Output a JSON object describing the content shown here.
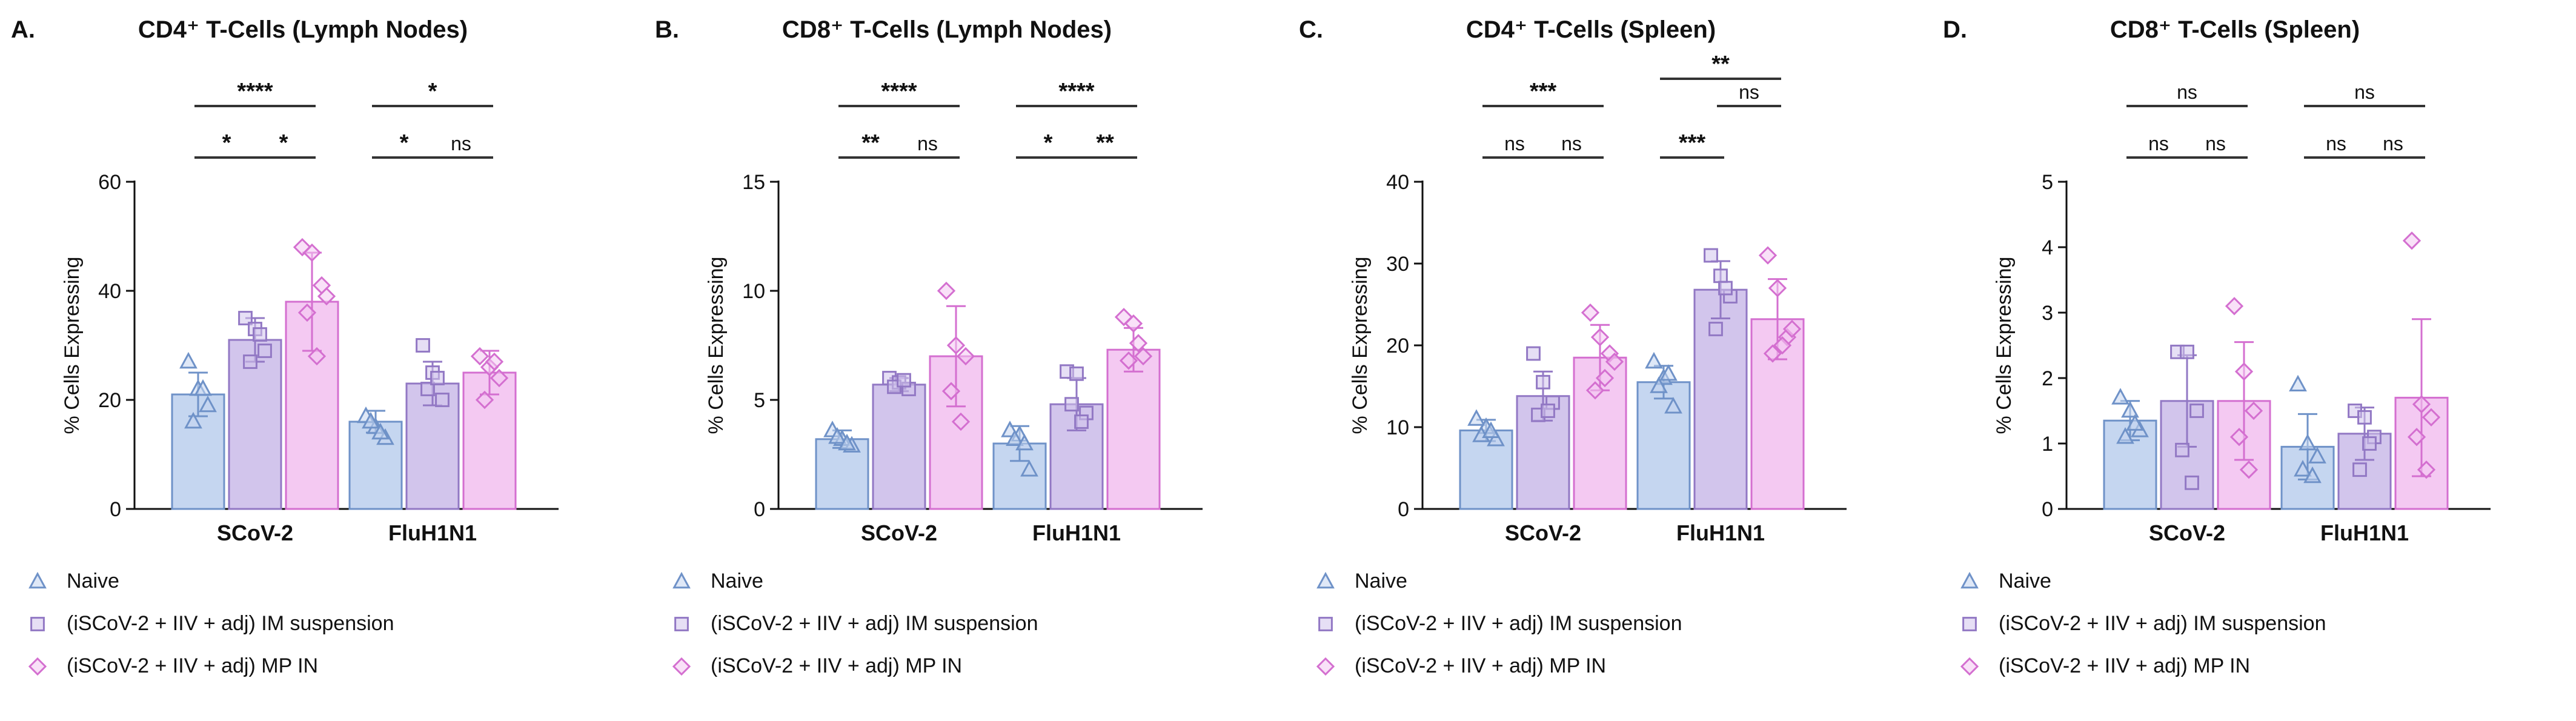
{
  "legend": [
    {
      "label": "Naive",
      "marker": "triangle",
      "color": "#8da9d6"
    },
    {
      "label": "(iSCoV-2 + IIV + adj) IM suspension",
      "marker": "square",
      "color": "#a78fd0"
    },
    {
      "label": "(iSCoV-2 + IIV + adj) MP IN",
      "marker": "diamond",
      "color": "#e596e2"
    }
  ],
  "colors": {
    "naive_fill": "#c5d6f0",
    "naive_edge": "#6f92c8",
    "im_fill": "#d2c5ec",
    "im_edge": "#9278c4",
    "mp_fill": "#f4c9f2",
    "mp_edge": "#d46fd0",
    "sig_line": "#333333"
  },
  "chart_data": [
    {
      "panel": "A.",
      "title": "CD4⁺ T-Cells (Lymph Nodes)",
      "type": "bar",
      "ylabel": "% Cells Expressing",
      "ylim": [
        0,
        60
      ],
      "yticks": [
        0,
        20,
        40,
        60
      ],
      "categories": [
        "SCoV-2",
        "FluH1N1"
      ],
      "series": [
        {
          "name": "Naive",
          "values": [
            21,
            16
          ],
          "error": [
            4,
            2
          ],
          "points": [
            [
              27,
              22,
              19,
              16,
              22
            ],
            [
              17,
              15,
              13,
              16,
              14
            ]
          ]
        },
        {
          "name": "(iSCoV-2 + IIV + adj) IM suspension",
          "values": [
            31,
            23
          ],
          "error": [
            4,
            4
          ],
          "points": [
            [
              35,
              33,
              29,
              27,
              32
            ],
            [
              30,
              25,
              20,
              22,
              24
            ]
          ]
        },
        {
          "name": "(iSCoV-2 + IIV + adj) MP IN",
          "values": [
            38,
            25
          ],
          "error": [
            9,
            4
          ],
          "points": [
            [
              48,
              47,
              41,
              36,
              28,
              39
            ],
            [
              28,
              26,
              24,
              20,
              27
            ]
          ]
        }
      ],
      "significance": [
        {
          "group": 0,
          "from": 0,
          "to": 2,
          "label": "****",
          "level": 2
        },
        {
          "group": 0,
          "from": 0,
          "to": 1,
          "label": "*",
          "level": 1
        },
        {
          "group": 0,
          "from": 1,
          "to": 2,
          "label": "*",
          "level": 1
        },
        {
          "group": 1,
          "from": 0,
          "to": 2,
          "label": "*",
          "level": 2
        },
        {
          "group": 1,
          "from": 0,
          "to": 1,
          "label": "*",
          "level": 1
        },
        {
          "group": 1,
          "from": 1,
          "to": 2,
          "label": "ns",
          "level": 1
        }
      ]
    },
    {
      "panel": "B.",
      "title": "CD8⁺ T-Cells (Lymph Nodes)",
      "type": "bar",
      "ylabel": "% Cells Expressing",
      "ylim": [
        0,
        15
      ],
      "yticks": [
        0,
        5,
        10,
        15
      ],
      "categories": [
        "SCoV-2",
        "FluH1N1"
      ],
      "series": [
        {
          "name": "Naive",
          "values": [
            3.2,
            3.0
          ],
          "error": [
            0.4,
            0.8
          ],
          "points": [
            [
              3.6,
              3.2,
              2.9,
              3.3,
              3.0
            ],
            [
              3.6,
              3.4,
              1.8,
              3.2,
              3.0
            ]
          ]
        },
        {
          "name": "(iSCoV-2 + IIV + adj) IM suspension",
          "values": [
            5.7,
            4.8
          ],
          "error": [
            0.3,
            1.2
          ],
          "points": [
            [
              6.0,
              5.8,
              5.5,
              5.6,
              5.9
            ],
            [
              6.3,
              6.2,
              4.4,
              4.8,
              4.0
            ]
          ]
        },
        {
          "name": "(iSCoV-2 + IIV + adj) MP IN",
          "values": [
            7.0,
            7.3
          ],
          "error": [
            2.3,
            1.0
          ],
          "points": [
            [
              10.0,
              7.5,
              7.0,
              5.4,
              4.0
            ],
            [
              8.8,
              8.5,
              7.0,
              6.8,
              7.6
            ]
          ]
        }
      ],
      "significance": [
        {
          "group": 0,
          "from": 0,
          "to": 2,
          "label": "****",
          "level": 2
        },
        {
          "group": 0,
          "from": 0,
          "to": 1,
          "label": "**",
          "level": 1
        },
        {
          "group": 0,
          "from": 1,
          "to": 2,
          "label": "ns",
          "level": 1
        },
        {
          "group": 1,
          "from": 0,
          "to": 2,
          "label": "****",
          "level": 2
        },
        {
          "group": 1,
          "from": 0,
          "to": 1,
          "label": "*",
          "level": 1
        },
        {
          "group": 1,
          "from": 1,
          "to": 2,
          "label": "**",
          "level": 1
        }
      ]
    },
    {
      "panel": "C.",
      "title": "CD4⁺ T-Cells (Spleen)",
      "type": "bar",
      "ylabel": "% Cells Expressing",
      "ylim": [
        0,
        40
      ],
      "yticks": [
        0,
        10,
        20,
        30,
        40
      ],
      "categories": [
        "SCoV-2",
        "FluH1N1"
      ],
      "series": [
        {
          "name": "Naive",
          "values": [
            9.6,
            15.5
          ],
          "error": [
            1.3,
            2.0
          ],
          "points": [
            [
              11.0,
              10.0,
              8.5,
              9.0,
              9.5
            ],
            [
              18.0,
              16.0,
              12.5,
              15.0,
              16.5
            ]
          ]
        },
        {
          "name": "(iSCoV-2 + IIV + adj) IM suspension",
          "values": [
            13.8,
            26.8
          ],
          "error": [
            3.0,
            3.5
          ],
          "points": [
            [
              19.0,
              15.5,
              13.0,
              11.5,
              12.0
            ],
            [
              31.0,
              28.5,
              26.0,
              22.0,
              27.0
            ]
          ]
        },
        {
          "name": "(iSCoV-2 + IIV + adj) MP IN",
          "values": [
            18.5,
            23.2
          ],
          "error": [
            4.0,
            4.9
          ],
          "points": [
            [
              24.0,
              21.0,
              19.0,
              14.5,
              16.0,
              18.0
            ],
            [
              31.0,
              27.0,
              21.0,
              19.0,
              20.0,
              22.0
            ]
          ]
        }
      ],
      "significance": [
        {
          "group": 0,
          "from": 0,
          "to": 2,
          "label": "***",
          "level": 2
        },
        {
          "group": 0,
          "from": 0,
          "to": 1,
          "label": "ns",
          "level": 1
        },
        {
          "group": 0,
          "from": 1,
          "to": 2,
          "label": "ns",
          "level": 1
        },
        {
          "group": 1,
          "from": 0,
          "to": 2,
          "label": "**",
          "level": 3
        },
        {
          "group": 1,
          "from": 1,
          "to": 2,
          "label": "ns",
          "level": 2
        },
        {
          "group": 1,
          "from": 0,
          "to": 1,
          "label": "***",
          "level": 1
        }
      ]
    },
    {
      "panel": "D.",
      "title": "CD8⁺ T-Cells (Spleen)",
      "type": "bar",
      "ylabel": "% Cells Expressing",
      "ylim": [
        0,
        5
      ],
      "yticks": [
        0,
        1,
        2,
        3,
        4,
        5
      ],
      "categories": [
        "SCoV-2",
        "FluH1N1"
      ],
      "series": [
        {
          "name": "Naive",
          "values": [
            1.35,
            0.95
          ],
          "error": [
            0.3,
            0.5
          ],
          "points": [
            [
              1.7,
              1.5,
              1.2,
              1.1,
              1.3
            ],
            [
              1.9,
              1.0,
              0.8,
              0.6,
              0.5
            ]
          ]
        },
        {
          "name": "(iSCoV-2 + IIV + adj) IM suspension",
          "values": [
            1.65,
            1.15
          ],
          "error": [
            0.7,
            0.4
          ],
          "points": [
            [
              2.4,
              2.4,
              1.5,
              0.9,
              0.4
            ],
            [
              1.5,
              1.4,
              1.1,
              0.6,
              1.0
            ]
          ]
        },
        {
          "name": "(iSCoV-2 + IIV + adj) MP IN",
          "values": [
            1.65,
            1.7
          ],
          "error": [
            0.9,
            1.2
          ],
          "points": [
            [
              3.1,
              2.1,
              1.5,
              1.1,
              0.6
            ],
            [
              4.1,
              1.6,
              1.4,
              1.1,
              0.6
            ]
          ]
        }
      ],
      "significance": [
        {
          "group": 0,
          "from": 0,
          "to": 2,
          "label": "ns",
          "level": 2
        },
        {
          "group": 0,
          "from": 0,
          "to": 1,
          "label": "ns",
          "level": 1
        },
        {
          "group": 0,
          "from": 1,
          "to": 2,
          "label": "ns",
          "level": 1
        },
        {
          "group": 1,
          "from": 0,
          "to": 2,
          "label": "ns",
          "level": 2
        },
        {
          "group": 1,
          "from": 0,
          "to": 1,
          "label": "ns",
          "level": 1
        },
        {
          "group": 1,
          "from": 1,
          "to": 2,
          "label": "ns",
          "level": 1
        }
      ]
    }
  ]
}
